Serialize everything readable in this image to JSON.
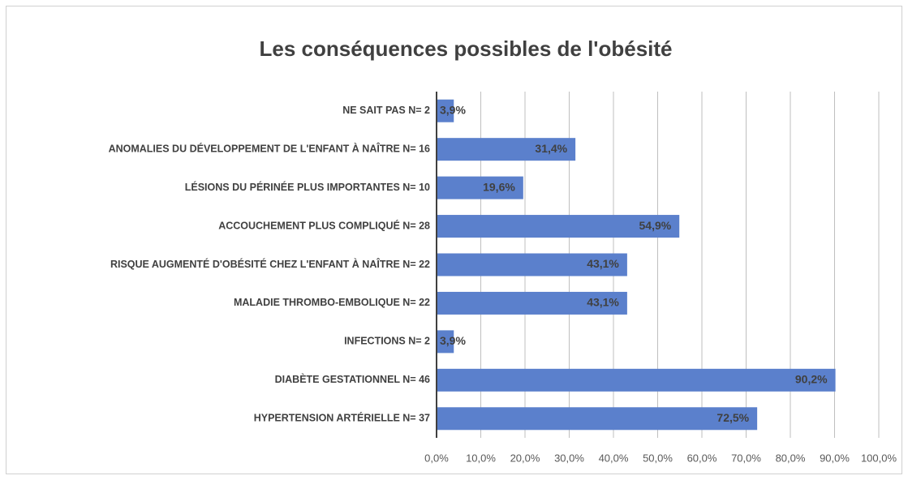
{
  "chart_data": {
    "type": "bar",
    "orientation": "horizontal",
    "title": "Les conséquences possibles de l'obésité",
    "categories": [
      "NE SAIT PAS  N= 2",
      "ANOMALIES DU DÉVELOPPEMENT DE L'ENFANT À NAÎTRE  N= 16",
      "LÉSIONS DU PÉRINÉE PLUS IMPORTANTES N= 10",
      "ACCOUCHEMENT PLUS COMPLIQUÉ N= 28",
      "RISQUE AUGMENTÉ D'OBÉSITÉ CHEZ L'ENFANT À NAÎTRE N= 22",
      "MALADIE THROMBO-EMBOLIQUE N= 22",
      "INFECTIONS N= 2",
      "DIABÈTE GESTATIONNEL N= 46",
      "HYPERTENSION ARTÉRIELLE N= 37"
    ],
    "values": [
      3.9,
      31.4,
      19.6,
      54.9,
      43.1,
      43.1,
      3.9,
      90.2,
      72.5
    ],
    "value_labels": [
      "3,9%",
      "31,4%",
      "19,6%",
      "54,9%",
      "43,1%",
      "43,1%",
      "3,9%",
      "90,2%",
      "72,5%"
    ],
    "color": "#5b80cc",
    "xlim": [
      0,
      100
    ],
    "xticks": [
      {
        "value": 0,
        "label": "0,0%"
      },
      {
        "value": 10,
        "label": "10,0%"
      },
      {
        "value": 20,
        "label": "20,0%"
      },
      {
        "value": 30,
        "label": "30,0%"
      },
      {
        "value": 40,
        "label": "40,0%"
      },
      {
        "value": 50,
        "label": "50,0%"
      },
      {
        "value": 60,
        "label": "60,0%"
      },
      {
        "value": 70,
        "label": "70,0%"
      },
      {
        "value": 80,
        "label": "80,0%"
      },
      {
        "value": 90,
        "label": "90,0%"
      },
      {
        "value": 100,
        "label": "100,0%"
      }
    ],
    "grid": true
  }
}
